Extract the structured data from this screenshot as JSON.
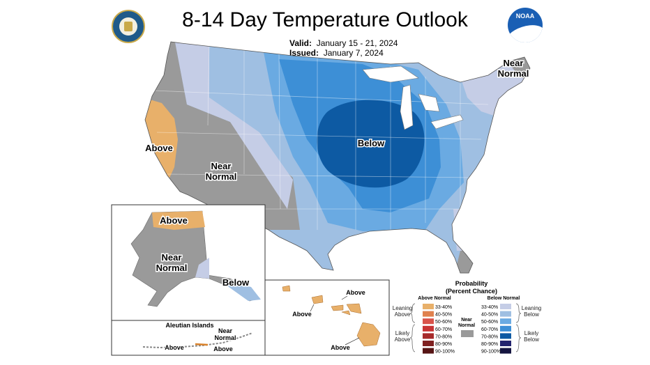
{
  "title": "8-14 Day Temperature Outlook",
  "valid_label": "Valid:",
  "valid_value": "January 15 - 21, 2024",
  "issued_label": "Issued:",
  "issued_value": "January 7, 2024",
  "logo_noaa": "NOAA",
  "colors": {
    "gray_near_normal": "#9a9a9a",
    "above_33_40": "#e8b06a",
    "below_33_40": "#c5cde6",
    "below_40_50": "#9fbfe2",
    "below_50_60": "#6aaae2",
    "below_60_70": "#3d8fd6",
    "below_70_80": "#0d5aa3"
  },
  "conus_labels": {
    "near_normal_ne": [
      "Near",
      "Normal"
    ],
    "above_west": "Above",
    "near_normal_west": [
      "Near",
      "Normal"
    ],
    "below_central": "Below"
  },
  "alaska": {
    "above": "Above",
    "near_normal": [
      "Near",
      "Normal"
    ],
    "below": "Below",
    "aleutian_title": "Aleutian Islands",
    "aleutian_near_normal": [
      "Near",
      "Normal"
    ],
    "aleutian_above": "Above",
    "aleutian_above_2": "Above"
  },
  "hawaii": {
    "above_1": "Above",
    "above_2": "Above",
    "above_3": "Above"
  },
  "legend": {
    "title_1": "Probability",
    "title_2": "(Percent Chance)",
    "above_header": "Above Normal",
    "below_header": "Below Normal",
    "near_header": [
      "Near",
      "Normal"
    ],
    "leaning_above": [
      "Leaning",
      "Above"
    ],
    "likely_above": [
      "Likely",
      "Above"
    ],
    "leaning_below": [
      "Leaning",
      "Below"
    ],
    "likely_below": [
      "Likely",
      "Below"
    ],
    "above_bins": [
      "33-40%",
      "40-50%",
      "50-60%",
      "60-70%",
      "70-80%",
      "80-90%",
      "90-100%"
    ],
    "below_bins": [
      "33-40%",
      "40-50%",
      "50-60%",
      "60-70%",
      "70-80%",
      "80-90%",
      "90-100%"
    ],
    "above_colors": [
      "#e8b06a",
      "#e0814e",
      "#d9534a",
      "#c83434",
      "#a62a2a",
      "#7f2020",
      "#561414"
    ],
    "below_colors": [
      "#c5cde6",
      "#9fbfe2",
      "#6aaae2",
      "#3d8fd6",
      "#0d5aa3",
      "#23236e",
      "#141440"
    ]
  }
}
